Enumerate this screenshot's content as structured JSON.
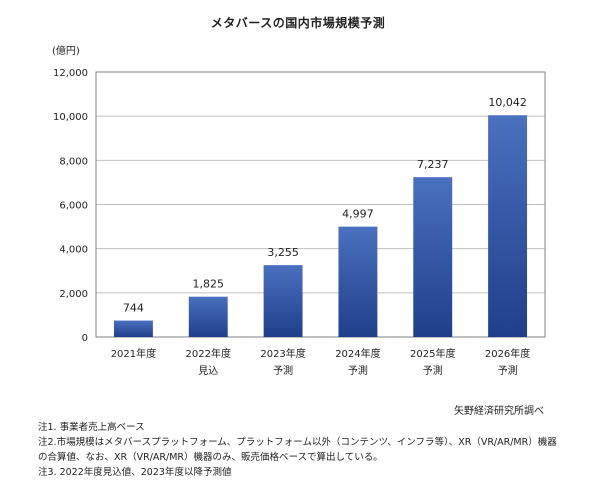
{
  "title": "メタバースの国内市場規模予測",
  "unit": "(億円)",
  "source": "矢野経済研究所調べ",
  "notes": [
    "注1. 事業者売上高ベース",
    "注2.市場規模はメタバースプラットフォーム、プラットフォーム以外（コンテンツ、インフラ等）、XR（VR/AR/MR）機器",
    "の合算値、なお、XR（VR/AR/MR）機器のみ、販売価格ベースで算出している。",
    "注3. 2022年度見込値、2023年度以降予測値"
  ],
  "colors": {
    "bar_top": "#4a70c0",
    "bar_bottom": "#1f3f8a",
    "grid": "#bfbfbf",
    "axis": "#808080"
  },
  "chart_data": {
    "type": "bar",
    "title": "メタバースの国内市場規模予測",
    "ylabel": "(億円)",
    "xlabel": "",
    "ylim": [
      0,
      12000
    ],
    "yticks": [
      0,
      2000,
      4000,
      6000,
      8000,
      10000,
      12000
    ],
    "ytick_labels": [
      "0",
      "2,000",
      "4,000",
      "6,000",
      "8,000",
      "10,000",
      "12,000"
    ],
    "grid": true,
    "categories": [
      [
        "2021年度"
      ],
      [
        "2022年度",
        "見込"
      ],
      [
        "2023年度",
        "予測"
      ],
      [
        "2024年度",
        "予測"
      ],
      [
        "2025年度",
        "予測"
      ],
      [
        "2026年度",
        "予測"
      ]
    ],
    "values": [
      744,
      1825,
      3255,
      4997,
      7237,
      10042
    ],
    "value_labels": [
      "744",
      "1,825",
      "3,255",
      "4,997",
      "7,237",
      "10,042"
    ]
  }
}
